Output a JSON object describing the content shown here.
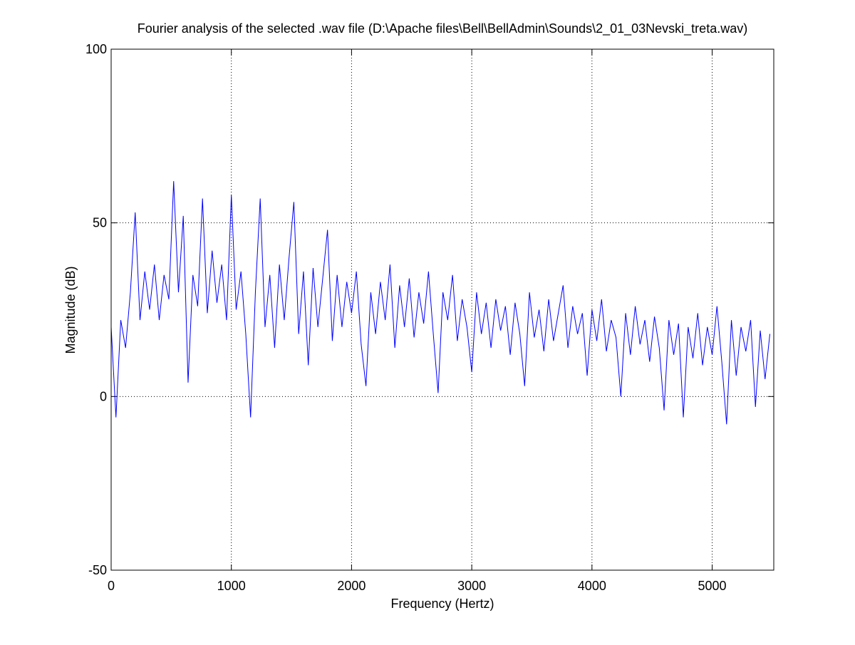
{
  "chart_data": {
    "type": "line",
    "title": "Fourier analysis of the selected .wav file (D:\\Apache files\\Bell\\BellAdmin\\Sounds\\2_01_03Nevski_treta.wav)",
    "xlabel": "Frequency (Hertz)",
    "ylabel": "Magnitude (dB)",
    "xlim": [
      0,
      5512.5
    ],
    "ylim": [
      -50,
      100
    ],
    "xticks": [
      0,
      1000,
      2000,
      3000,
      4000,
      5000
    ],
    "yticks": [
      -50,
      0,
      50,
      100
    ],
    "grid": true,
    "x": [
      0,
      40,
      80,
      120,
      160,
      200,
      240,
      280,
      320,
      360,
      400,
      440,
      480,
      520,
      560,
      600,
      640,
      680,
      720,
      760,
      800,
      840,
      880,
      920,
      960,
      1000,
      1040,
      1080,
      1120,
      1160,
      1200,
      1240,
      1280,
      1320,
      1360,
      1400,
      1440,
      1480,
      1520,
      1560,
      1600,
      1640,
      1680,
      1720,
      1760,
      1800,
      1840,
      1880,
      1920,
      1960,
      2000,
      2040,
      2080,
      2120,
      2160,
      2200,
      2240,
      2280,
      2320,
      2360,
      2400,
      2440,
      2480,
      2520,
      2560,
      2600,
      2640,
      2680,
      2720,
      2760,
      2800,
      2840,
      2880,
      2920,
      2960,
      3000,
      3040,
      3080,
      3120,
      3160,
      3200,
      3240,
      3280,
      3320,
      3360,
      3400,
      3440,
      3480,
      3520,
      3560,
      3600,
      3640,
      3680,
      3720,
      3760,
      3800,
      3840,
      3880,
      3920,
      3960,
      4000,
      4040,
      4080,
      4120,
      4160,
      4200,
      4240,
      4280,
      4320,
      4360,
      4400,
      4440,
      4480,
      4520,
      4560,
      4600,
      4640,
      4680,
      4720,
      4760,
      4800,
      4840,
      4880,
      4920,
      4960,
      5000,
      5040,
      5080,
      5120,
      5160,
      5200,
      5240,
      5280,
      5320,
      5360,
      5400,
      5440,
      5480
    ],
    "series": [
      {
        "color": "#0000ff",
        "values": [
          20,
          -6,
          22,
          14,
          30,
          53,
          22,
          36,
          25,
          38,
          22,
          35,
          28,
          62,
          30,
          52,
          4,
          35,
          26,
          57,
          24,
          42,
          27,
          38,
          22,
          58,
          25,
          36,
          18,
          -6,
          30,
          57,
          20,
          35,
          14,
          38,
          22,
          40,
          56,
          18,
          36,
          9,
          37,
          20,
          34,
          48,
          16,
          35,
          20,
          33,
          24,
          36,
          15,
          3,
          30,
          18,
          33,
          22,
          38,
          14,
          32,
          20,
          34,
          17,
          30,
          21,
          36,
          18,
          1,
          30,
          22,
          35,
          16,
          28,
          20,
          7,
          30,
          18,
          27,
          14,
          28,
          19,
          26,
          12,
          27,
          18,
          3,
          30,
          17,
          25,
          13,
          28,
          16,
          24,
          32,
          14,
          26,
          18,
          24,
          6,
          25,
          16,
          28,
          13,
          22,
          17,
          0,
          24,
          12,
          26,
          15,
          22,
          10,
          23,
          14,
          -4,
          22,
          12,
          21,
          -6,
          20,
          11,
          24,
          9,
          20,
          12,
          26,
          10,
          -8,
          22,
          6,
          20,
          13,
          22,
          -3,
          19,
          5,
          18
        ]
      }
    ]
  }
}
